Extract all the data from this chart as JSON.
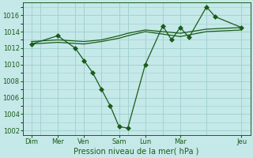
{
  "background_color": "#c5e8e8",
  "grid_color": "#9ecece",
  "line_color": "#1a5c1a",
  "marker_color": "#1a5c1a",
  "xlabel": "Pression niveau de la mer( hPa )",
  "xlabel_fontsize": 7,
  "ylim": [
    1001.5,
    1017.5
  ],
  "yticks": [
    1002,
    1004,
    1006,
    1008,
    1010,
    1012,
    1014,
    1016
  ],
  "xlim": [
    0,
    13
  ],
  "xtick_labels_pos": [
    0.5,
    2,
    3.5,
    5.5,
    7,
    9,
    12.5
  ],
  "xtick_labels": [
    "Dim",
    "Mer",
    "Ven",
    "Sam",
    "Lun",
    "Mar",
    "Jeu"
  ],
  "vline_positions": [
    1,
    3,
    4.5,
    6,
    8,
    10.5,
    13
  ],
  "series": [
    {
      "x": [
        0.5,
        2,
        3.5,
        4.5,
        5.5,
        6,
        7,
        8,
        9,
        10.5,
        12.5
      ],
      "y": [
        1012.8,
        1013.0,
        1012.8,
        1013.0,
        1013.5,
        1013.8,
        1014.2,
        1014.0,
        1013.8,
        1014.3,
        1014.5
      ],
      "marker": null,
      "linewidth": 0.9
    },
    {
      "x": [
        0.5,
        2,
        3.5,
        4.5,
        5.5,
        6,
        7,
        8,
        9,
        10.5,
        12.5
      ],
      "y": [
        1012.5,
        1012.7,
        1012.5,
        1012.8,
        1013.2,
        1013.5,
        1014.0,
        1013.7,
        1013.4,
        1014.0,
        1014.2
      ],
      "marker": null,
      "linewidth": 0.9
    },
    {
      "x": [
        0.5,
        2.0,
        3.0,
        3.5,
        4.0,
        4.5,
        5.0,
        5.5,
        6.0,
        7.0,
        8.0,
        8.5,
        9.0,
        9.5,
        10.5,
        11.0,
        12.5
      ],
      "y": [
        1012.5,
        1013.5,
        1012.0,
        1010.5,
        1009.0,
        1007.0,
        1005.0,
        1002.5,
        1002.3,
        1010.0,
        1014.7,
        1013.0,
        1014.5,
        1013.3,
        1017.0,
        1015.8,
        1014.5
      ],
      "marker": "D",
      "linewidth": 0.9
    }
  ],
  "figsize": [
    3.2,
    2.0
  ],
  "dpi": 100
}
